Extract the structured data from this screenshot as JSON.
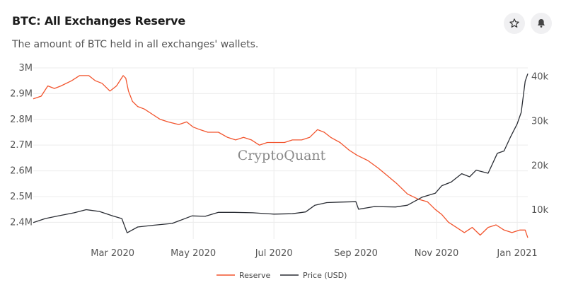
{
  "header": {
    "title": "BTC: All Exchanges Reserve",
    "subtitle": "The amount of BTC held in all exchanges' wallets.",
    "watermark": "CryptoQuant"
  },
  "colors": {
    "reserve": "#f2542d",
    "price": "#2a2d34",
    "grid": "#ececec"
  },
  "chart_data": {
    "type": "line",
    "title": "BTC: All Exchanges Reserve",
    "legend_position": "bottom",
    "grid": true,
    "x_ticks": [
      "Mar 2020",
      "May 2020",
      "Jul 2020",
      "Sep 2020",
      "Nov 2020",
      "Jan 2021"
    ],
    "x_range": [
      "2020-01-01",
      "2021-01-09"
    ],
    "y_left": {
      "ticks": [
        "2.4M",
        "2.5M",
        "2.6M",
        "2.7M",
        "2.8M",
        "2.9M",
        "3M"
      ],
      "range": [
        2.335,
        3.0
      ]
    },
    "y_right": {
      "ticks": [
        "10k",
        "20k",
        "30k",
        "40k"
      ],
      "range": [
        3500,
        42000
      ]
    },
    "series": [
      {
        "name": "Reserve",
        "axis": "left",
        "x": [
          "2020-01-01",
          "2020-01-07",
          "2020-01-12",
          "2020-01-17",
          "2020-01-22",
          "2020-01-30",
          "2020-02-05",
          "2020-02-12",
          "2020-02-17",
          "2020-02-22",
          "2020-02-28",
          "2020-03-04",
          "2020-03-09",
          "2020-03-11",
          "2020-03-13",
          "2020-03-16",
          "2020-03-20",
          "2020-03-25",
          "2020-03-31",
          "2020-04-06",
          "2020-04-12",
          "2020-04-20",
          "2020-04-26",
          "2020-05-01",
          "2020-05-06",
          "2020-05-12",
          "2020-05-20",
          "2020-05-27",
          "2020-06-02",
          "2020-06-08",
          "2020-06-14",
          "2020-06-20",
          "2020-06-26",
          "2020-07-02",
          "2020-07-09",
          "2020-07-15",
          "2020-07-22",
          "2020-07-28",
          "2020-08-03",
          "2020-08-08",
          "2020-08-13",
          "2020-08-20",
          "2020-08-27",
          "2020-09-02",
          "2020-09-10",
          "2020-09-18",
          "2020-09-25",
          "2020-10-02",
          "2020-10-10",
          "2020-10-18",
          "2020-10-25",
          "2020-10-31",
          "2020-11-05",
          "2020-11-10",
          "2020-11-16",
          "2020-11-22",
          "2020-11-28",
          "2020-12-04",
          "2020-12-10",
          "2020-12-16",
          "2020-12-22",
          "2020-12-28",
          "2021-01-03",
          "2021-01-07",
          "2021-01-09"
        ],
        "values": [
          2.88,
          2.89,
          2.93,
          2.92,
          2.93,
          2.95,
          2.97,
          2.97,
          2.95,
          2.94,
          2.91,
          2.93,
          2.97,
          2.96,
          2.91,
          2.87,
          2.85,
          2.84,
          2.82,
          2.8,
          2.79,
          2.78,
          2.79,
          2.77,
          2.76,
          2.75,
          2.75,
          2.73,
          2.72,
          2.73,
          2.72,
          2.7,
          2.71,
          2.71,
          2.71,
          2.72,
          2.72,
          2.73,
          2.76,
          2.75,
          2.73,
          2.71,
          2.68,
          2.66,
          2.64,
          2.61,
          2.58,
          2.55,
          2.51,
          2.49,
          2.48,
          2.45,
          2.43,
          2.4,
          2.38,
          2.36,
          2.38,
          2.35,
          2.38,
          2.39,
          2.37,
          2.36,
          2.37,
          2.37,
          2.34
        ]
      },
      {
        "name": "Price (USD)",
        "axis": "right",
        "x": [
          "2020-01-01",
          "2020-01-10",
          "2020-01-20",
          "2020-02-01",
          "2020-02-10",
          "2020-02-20",
          "2020-03-01",
          "2020-03-08",
          "2020-03-12",
          "2020-03-20",
          "2020-04-01",
          "2020-04-15",
          "2020-04-30",
          "2020-05-10",
          "2020-05-20",
          "2020-06-01",
          "2020-06-15",
          "2020-07-01",
          "2020-07-15",
          "2020-07-25",
          "2020-08-01",
          "2020-08-10",
          "2020-08-20",
          "2020-09-01",
          "2020-09-03",
          "2020-09-15",
          "2020-10-01",
          "2020-10-10",
          "2020-10-21",
          "2020-10-31",
          "2020-11-05",
          "2020-11-12",
          "2020-11-20",
          "2020-11-26",
          "2020-12-01",
          "2020-12-10",
          "2020-12-17",
          "2020-12-22",
          "2020-12-27",
          "2021-01-01",
          "2021-01-04",
          "2021-01-07",
          "2021-01-09"
        ],
        "values": [
          7200,
          8100,
          8700,
          9400,
          10100,
          9700,
          8700,
          8100,
          4900,
          6200,
          6600,
          7000,
          8700,
          8600,
          9500,
          9500,
          9400,
          9100,
          9200,
          9600,
          11100,
          11700,
          11800,
          11900,
          10200,
          10800,
          10700,
          11100,
          12900,
          13800,
          15500,
          16300,
          18200,
          17500,
          19000,
          18300,
          22800,
          23300,
          26500,
          29400,
          32000,
          39000,
          40700
        ]
      }
    ]
  }
}
